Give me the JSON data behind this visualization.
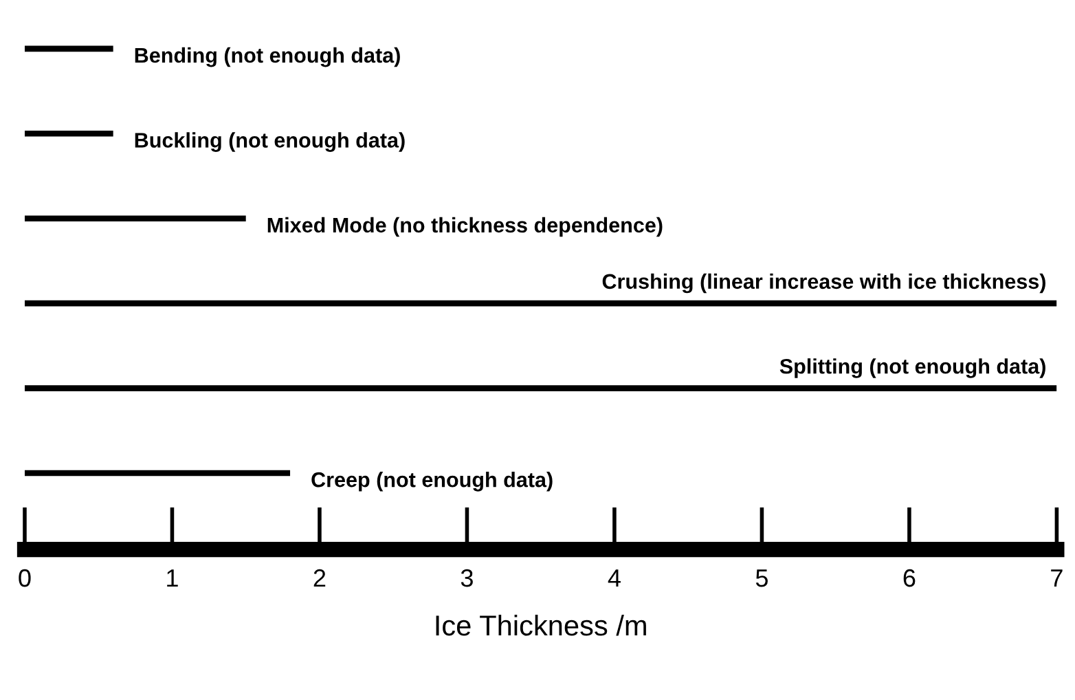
{
  "chart_data": {
    "type": "bar",
    "orientation": "horizontal",
    "categories": [
      "Bending (not enough data)",
      "Buckling (not enough data)",
      "Mixed Mode (no thickness dependence)",
      "Crushing (linear increase with ice thickness)",
      "Splitting (not enough data)",
      "Creep (not enough data)"
    ],
    "values": [
      0.6,
      0.6,
      1.5,
      7,
      7,
      1.8
    ],
    "color": "#000000",
    "xlim": [
      0,
      7
    ],
    "xticks": [
      0,
      1,
      2,
      3,
      4,
      5,
      6,
      7
    ],
    "xlabel": "Ice Thickness /m",
    "tick_labels": "x",
    "grid": false,
    "legend": false
  }
}
